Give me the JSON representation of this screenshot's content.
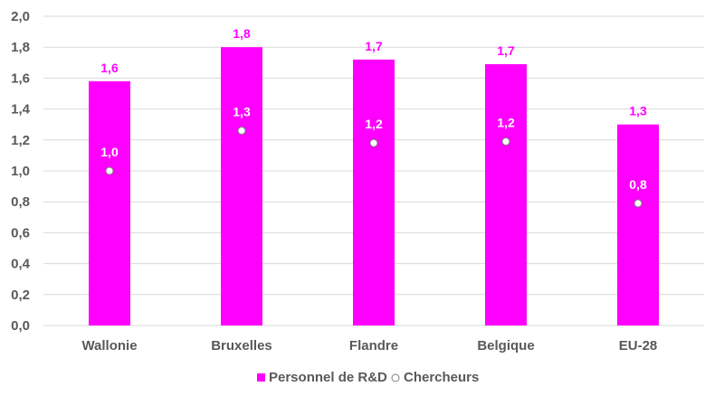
{
  "chart_data": {
    "type": "bar",
    "categories": [
      "Wallonie",
      "Bruxelles",
      "Flandre",
      "Belgique",
      "EU-28"
    ],
    "series": [
      {
        "name": "Personnel de R&D",
        "mark": "bar",
        "color": "#ff00ff",
        "values": [
          1.58,
          1.8,
          1.72,
          1.69,
          1.3
        ],
        "labels": [
          "1,6",
          "1,8",
          "1,7",
          "1,7",
          "1,3"
        ]
      },
      {
        "name": "Chercheurs",
        "mark": "dot",
        "color": "#ffffff",
        "values": [
          1.0,
          1.26,
          1.18,
          1.19,
          0.79
        ],
        "labels": [
          "1,0",
          "1,3",
          "1,2",
          "1,2",
          "0,8"
        ]
      }
    ],
    "ylim": [
      0,
      2.0
    ],
    "yticks": [
      "0,0",
      "0,2",
      "0,4",
      "0,6",
      "0,8",
      "1,0",
      "1,2",
      "1,4",
      "1,6",
      "1,8",
      "2,0"
    ],
    "xlabel": "",
    "ylabel": "",
    "title": "",
    "grid": true,
    "legend_position": "bottom",
    "label_color": "#ff00ff",
    "gridline_color": "#d9d9d9",
    "axis_text_color": "#595959"
  }
}
